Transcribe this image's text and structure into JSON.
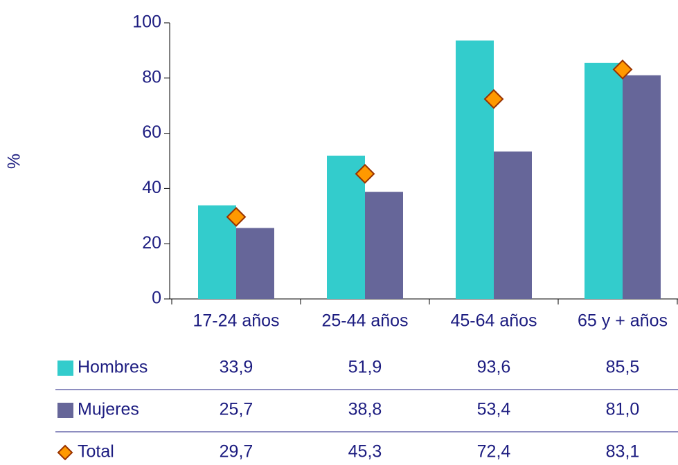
{
  "chart_data": {
    "type": "bar",
    "y_label": "%",
    "categories": [
      "17-24 años",
      "25-44 años",
      "45-64 años",
      "65 y + años"
    ],
    "series": [
      {
        "name": "Hombres",
        "color": "#33cccc",
        "values": [
          33.9,
          51.9,
          93.6,
          85.5
        ],
        "value_labels": [
          "33,9",
          "51,9",
          "93,6",
          "85,5"
        ]
      },
      {
        "name": "Mujeres",
        "color": "#666699",
        "values": [
          25.7,
          38.8,
          53.4,
          81.0
        ],
        "value_labels": [
          "25,7",
          "38,8",
          "53,4",
          "81,0"
        ]
      },
      {
        "name": "Total",
        "color": "#ff9900",
        "marker": "diamond",
        "values": [
          29.7,
          45.3,
          72.4,
          83.1
        ],
        "value_labels": [
          "29,7",
          "45,3",
          "72,4",
          "83,1"
        ]
      }
    ],
    "ylim": [
      0,
      100
    ],
    "yticks": [
      0,
      20,
      40,
      60,
      80,
      100
    ],
    "grid": false
  }
}
